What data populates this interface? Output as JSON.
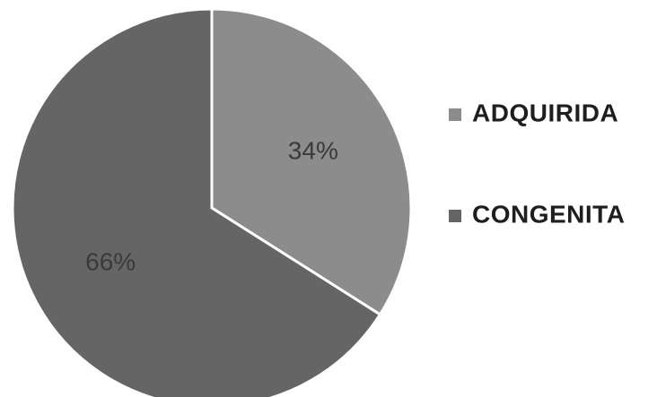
{
  "chart_data": {
    "type": "pie",
    "title": "",
    "series": [
      {
        "name": "ADQUIRIDA",
        "value": 34,
        "label": "34%",
        "color": "#8c8c8c"
      },
      {
        "name": "CONGENITA",
        "value": 66,
        "label": "66%",
        "color": "#656565"
      }
    ],
    "legend_position": "right",
    "start_angle": "top, clockwise",
    "slice_border_color": "#ffffff"
  }
}
